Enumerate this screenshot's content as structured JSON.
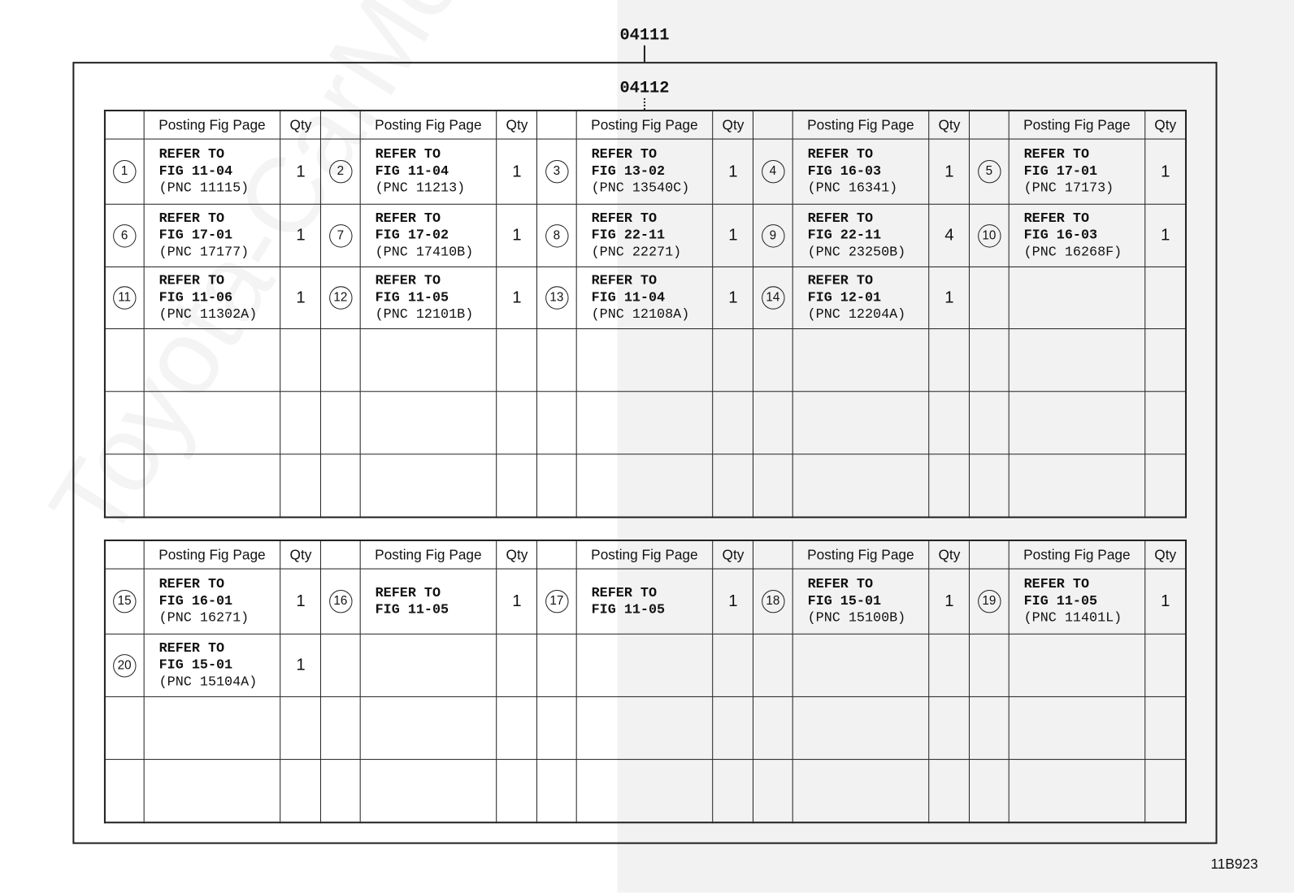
{
  "labels": {
    "outer": "04111",
    "inner": "04112",
    "figure_code": "11B923",
    "watermark": "Toyota-CarMe.ru"
  },
  "header": {
    "posting": "Posting Fig Page",
    "qty": "Qty"
  },
  "table1": {
    "rows": [
      [
        {
          "num": "1",
          "refer": "REFER TO",
          "fig": "FIG 11-04",
          "pnc": "(PNC 11115)",
          "qty": "1"
        },
        {
          "num": "2",
          "refer": "REFER TO",
          "fig": "FIG 11-04",
          "pnc": "(PNC 11213)",
          "qty": "1"
        },
        {
          "num": "3",
          "refer": "REFER TO",
          "fig": "FIG 13-02",
          "pnc": "(PNC 13540C)",
          "qty": "1"
        },
        {
          "num": "4",
          "refer": "REFER TO",
          "fig": "FIG 16-03",
          "pnc": "(PNC 16341)",
          "qty": "1"
        },
        {
          "num": "5",
          "refer": "REFER TO",
          "fig": "FIG 17-01",
          "pnc": "(PNC 17173)",
          "qty": "1"
        }
      ],
      [
        {
          "num": "6",
          "refer": "REFER TO",
          "fig": "FIG 17-01",
          "pnc": "(PNC 17177)",
          "qty": "1"
        },
        {
          "num": "7",
          "refer": "REFER TO",
          "fig": "FIG 17-02",
          "pnc": "(PNC 17410B)",
          "qty": "1"
        },
        {
          "num": "8",
          "refer": "REFER TO",
          "fig": "FIG 22-11",
          "pnc": "(PNC 22271)",
          "qty": "1"
        },
        {
          "num": "9",
          "refer": "REFER TO",
          "fig": "FIG 22-11",
          "pnc": "(PNC 23250B)",
          "qty": "4"
        },
        {
          "num": "10",
          "refer": "REFER TO",
          "fig": "FIG 16-03",
          "pnc": "(PNC 16268F)",
          "qty": "1"
        }
      ],
      [
        {
          "num": "11",
          "refer": "REFER TO",
          "fig": "FIG 11-06",
          "pnc": "(PNC 11302A)",
          "qty": "1"
        },
        {
          "num": "12",
          "refer": "REFER TO",
          "fig": "FIG 11-05",
          "pnc": "(PNC 12101B)",
          "qty": "1"
        },
        {
          "num": "13",
          "refer": "REFER TO",
          "fig": "FIG 11-04",
          "pnc": "(PNC 12108A)",
          "qty": "1"
        },
        {
          "num": "14",
          "refer": "REFER TO",
          "fig": "FIG 12-01",
          "pnc": "(PNC 12204A)",
          "qty": "1"
        },
        {}
      ],
      [
        {},
        {},
        {},
        {},
        {}
      ],
      [
        {},
        {},
        {},
        {},
        {}
      ],
      [
        {},
        {},
        {},
        {},
        {}
      ]
    ]
  },
  "table2": {
    "rows": [
      [
        {
          "num": "15",
          "refer": "REFER TO",
          "fig": "FIG 16-01",
          "pnc": "(PNC 16271)",
          "qty": "1"
        },
        {
          "num": "16",
          "refer": "REFER TO",
          "fig": "FIG 11-05",
          "qty": "1"
        },
        {
          "num": "17",
          "refer": "REFER TO",
          "fig": "FIG 11-05",
          "qty": "1"
        },
        {
          "num": "18",
          "refer": "REFER TO",
          "fig": "FIG 15-01",
          "pnc": "(PNC 15100B)",
          "qty": "1"
        },
        {
          "num": "19",
          "refer": "REFER TO",
          "fig": "FIG 11-05",
          "pnc": "(PNC 11401L)",
          "qty": "1"
        }
      ],
      [
        {
          "num": "20",
          "refer": "REFER TO",
          "fig": "FIG 15-01",
          "pnc": "(PNC 15104A)",
          "qty": "1"
        },
        {},
        {},
        {},
        {}
      ],
      [
        {},
        {},
        {},
        {},
        {}
      ],
      [
        {},
        {},
        {},
        {},
        {}
      ]
    ]
  }
}
